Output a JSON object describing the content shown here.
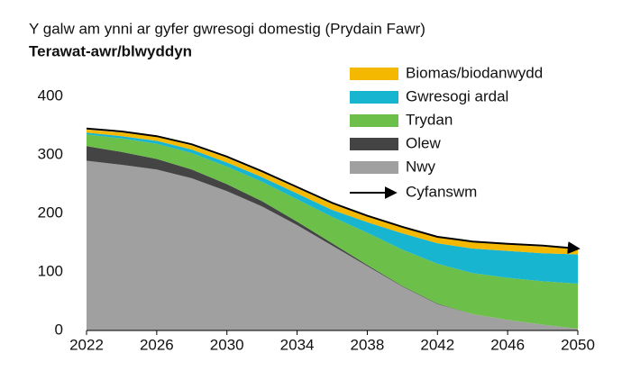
{
  "chart_data": {
    "type": "stacked_area",
    "title": "Y galw am ynni ar gyfer gwresogi domestig (Prydain Fawr)",
    "subtitle": "Terawat-awr/blwyddyn",
    "x": [
      2022,
      2024,
      2026,
      2028,
      2030,
      2032,
      2034,
      2036,
      2038,
      2040,
      2042,
      2044,
      2046,
      2048,
      2050
    ],
    "series": [
      {
        "name": "Biomas/biodanwydd",
        "color": "#f5b800",
        "values": [
          5,
          6,
          7,
          7,
          8,
          8,
          9,
          10,
          10,
          10,
          10,
          11,
          11,
          11,
          10
        ]
      },
      {
        "name": "Gwresogi ardal",
        "color": "#17b5d0",
        "values": [
          3,
          4,
          5,
          6,
          7,
          8,
          10,
          12,
          18,
          28,
          35,
          42,
          46,
          48,
          50
        ]
      },
      {
        "name": "Trydan",
        "color": "#6cc04a",
        "values": [
          20,
          23,
          26,
          28,
          30,
          33,
          38,
          45,
          55,
          62,
          68,
          70,
          72,
          74,
          77
        ]
      },
      {
        "name": "Olew",
        "color": "#444444",
        "values": [
          25,
          22,
          18,
          15,
          12,
          9,
          6,
          4,
          2,
          1,
          1,
          0,
          0,
          0,
          0
        ]
      },
      {
        "name": "Nwy",
        "color": "#a0a0a0",
        "values": [
          290,
          283,
          275,
          260,
          238,
          212,
          180,
          145,
          110,
          75,
          45,
          28,
          18,
          10,
          3
        ]
      }
    ],
    "total": {
      "name": "Cyfanswm",
      "color": "#000000",
      "values": [
        345,
        340,
        332,
        318,
        297,
        272,
        245,
        218,
        196,
        177,
        160,
        152,
        148,
        145,
        140
      ]
    },
    "xlim": [
      2022,
      2050
    ],
    "xticks": [
      2022,
      2026,
      2030,
      2034,
      2038,
      2042,
      2046,
      2050
    ],
    "ylim": [
      0,
      400
    ],
    "yticks": [
      0,
      100,
      200,
      300,
      400
    ],
    "legend": "top-right"
  }
}
